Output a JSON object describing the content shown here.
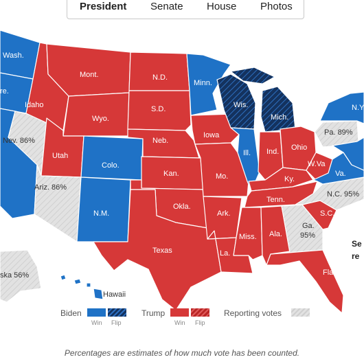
{
  "tabs": [
    {
      "label": "President",
      "active": true
    },
    {
      "label": "Senate",
      "active": false
    },
    {
      "label": "House",
      "active": false
    },
    {
      "label": "Photos",
      "active": false
    }
  ],
  "colors": {
    "biden": "#1f72c6",
    "biden_flip": "#14325e",
    "trump": "#d63838",
    "trump_flip": "#c12a2a",
    "reporting": "#dedede",
    "border": "#ffffff",
    "neighbor": "#ececec"
  },
  "states": {
    "wash": "Wash.",
    "ore": "re.",
    "idaho": "Idaho",
    "mont": "Mont.",
    "nd": "N.D.",
    "minn": "Minn.",
    "wis": "Wis.",
    "mich": "Mich.",
    "ny": "N.Y",
    "nev": "Nev. 86%",
    "wyo": "Wyo.",
    "sd": "S.D.",
    "iowa": "Iowa",
    "utah": "Utah",
    "neb": "Neb.",
    "colo": "Colo.",
    "ill": "Ill.",
    "ind": "Ind.",
    "ohio": "Ohio",
    "pa": "Pa. 89%",
    "wva": "W.Va",
    "va": "Va.",
    "kan": "Kan.",
    "mo": "Mo.",
    "ky": "Ky.",
    "nc": "N.C. 95%",
    "ariz": "Ariz. 86%",
    "nm": "N.M.",
    "okla": "Okla.",
    "tenn": "Tenn.",
    "ark": "Ark.",
    "sc": "S.C.",
    "ga": "Ga.",
    "ga_pct": "95%",
    "miss": "Miss.",
    "ala": "Ala.",
    "texas": "Texas",
    "la": "La.",
    "fla": "Fla.",
    "alaska": "ska 56%",
    "hawaii": "Hawaii"
  },
  "side_note": {
    "line1": "Se",
    "line2": "re"
  },
  "legend": {
    "biden": "Biden",
    "trump": "Trump",
    "reporting": "Reporting votes",
    "win": "Win",
    "flip": "Flip"
  },
  "footnote": "Percentages are estimates of how much vote has been counted."
}
